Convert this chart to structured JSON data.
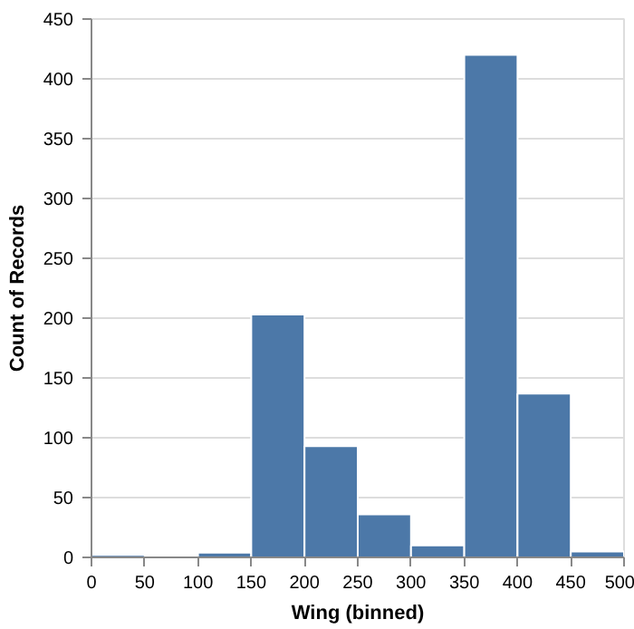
{
  "chart_data": {
    "type": "histogram",
    "xlabel": "Wing (binned)",
    "ylabel": "Count of Records",
    "bins": [
      0,
      50,
      100,
      150,
      200,
      250,
      300,
      350,
      400,
      450,
      500
    ],
    "values": [
      2,
      0,
      4,
      203,
      93,
      36,
      10,
      420,
      137,
      5
    ],
    "color": "#4c78a8",
    "xlim": [
      0,
      500
    ],
    "xticks": [
      0,
      50,
      100,
      150,
      200,
      250,
      300,
      350,
      400,
      450,
      500
    ],
    "ylim": [
      0,
      450
    ],
    "yticks": [
      0,
      50,
      100,
      150,
      200,
      250,
      300,
      350,
      400,
      450
    ],
    "grid": "y"
  }
}
